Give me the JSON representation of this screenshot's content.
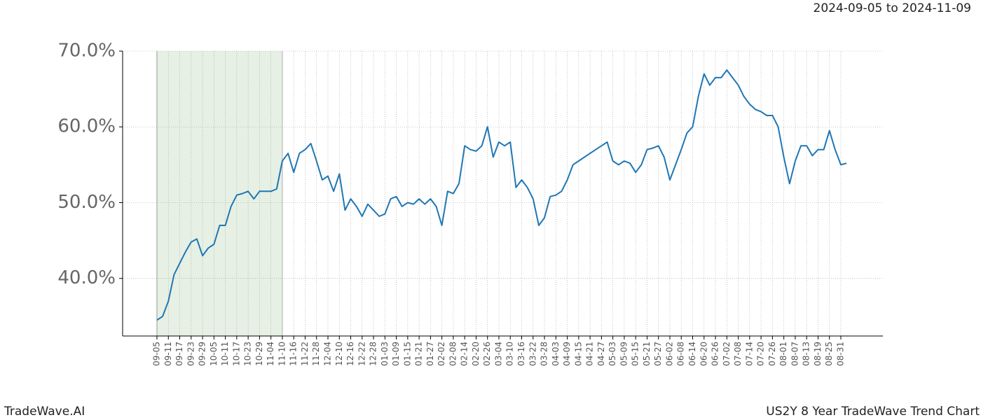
{
  "chart_data": {
    "type": "line",
    "date_range": "2024-09-05 to 2024-11-09",
    "brand": "TradeWave.AI",
    "chart_name": "US2Y 8 Year TradeWave Trend Chart",
    "categories": [
      "09-05",
      null,
      "09-11",
      null,
      "09-17",
      null,
      "09-23",
      null,
      "09-29",
      null,
      "10-05",
      null,
      "10-11",
      null,
      "10-17",
      null,
      "10-23",
      null,
      "10-29",
      null,
      "11-04",
      null,
      "11-10",
      null,
      "11-16",
      null,
      "11-22",
      null,
      "11-28",
      null,
      "12-04",
      null,
      "12-10",
      null,
      "12-16",
      null,
      "12-22",
      null,
      "12-28",
      null,
      "01-03",
      null,
      "01-09",
      null,
      "01-15",
      null,
      "01-21",
      null,
      "01-27",
      null,
      "02-02",
      null,
      "02-08",
      null,
      "02-14",
      null,
      "02-20",
      null,
      "02-26",
      null,
      "03-04",
      null,
      "03-10",
      null,
      "03-16",
      null,
      "03-22",
      null,
      "03-28",
      null,
      "04-03",
      null,
      "04-09",
      null,
      "04-15",
      null,
      "04-21",
      null,
      "04-27",
      null,
      "05-03",
      null,
      "05-09",
      null,
      "05-15",
      null,
      "05-21",
      null,
      "05-27",
      null,
      "06-02",
      null,
      "06-08",
      null,
      "06-14",
      null,
      "06-20",
      null,
      "06-26",
      null,
      "07-02",
      null,
      "07-08",
      null,
      "07-14",
      null,
      "07-20",
      null,
      "07-26",
      null,
      "08-01",
      null,
      "08-07",
      null,
      "08-13",
      null,
      "08-19",
      null,
      "08-25",
      null,
      "08-31",
      null
    ],
    "series": [
      {
        "color": "#1f77b4",
        "values": [
          34.5,
          35,
          37,
          40.5,
          42,
          43.5,
          44.8,
          45.2,
          43,
          44,
          44.5,
          47,
          47,
          49.5,
          51,
          51.2,
          51.5,
          50.5,
          51.5,
          51.5,
          51.5,
          51.8,
          55.5,
          56.5,
          54,
          56.5,
          57,
          57.8,
          55.5,
          53,
          53.5,
          51.5,
          53.8,
          49,
          50.5,
          49.5,
          48.2,
          49.8,
          49,
          48.2,
          48.5,
          50.5,
          50.8,
          49.5,
          50,
          49.8,
          50.5,
          49.8,
          50.5,
          49.5,
          47,
          51.5,
          51.2,
          52.5,
          57.5,
          57,
          56.8,
          57.5,
          60,
          56,
          58,
          57.5,
          58,
          52,
          53,
          52,
          50.5,
          47,
          48,
          50.8,
          51,
          51.5,
          53,
          55,
          55.5,
          56,
          56.5,
          57,
          57.5,
          58,
          55.5,
          55,
          55.5,
          55.2,
          54,
          55,
          57,
          57.2,
          57.5,
          56,
          53,
          55,
          57,
          59.2,
          60,
          64,
          67,
          65.5,
          66.5,
          66.5,
          67.5,
          66.5,
          65.5,
          64,
          63,
          62.3,
          62,
          61.5,
          61.5,
          60,
          56,
          52.5,
          55.5,
          57.5,
          57.5,
          56.2,
          57,
          57,
          59.5,
          57,
          55,
          55.2
        ]
      }
    ],
    "highlight": {
      "from": "09-05",
      "to": "11-10",
      "color": "#e6f0e4"
    },
    "ylim": [
      32.4,
      70
    ],
    "yticks": [
      {
        "value": 40,
        "label": "40.0%"
      },
      {
        "value": 50,
        "label": "50.0%"
      },
      {
        "value": 60,
        "label": "60.0%"
      },
      {
        "value": 70,
        "label": "70.0%"
      }
    ],
    "grid": true
  }
}
